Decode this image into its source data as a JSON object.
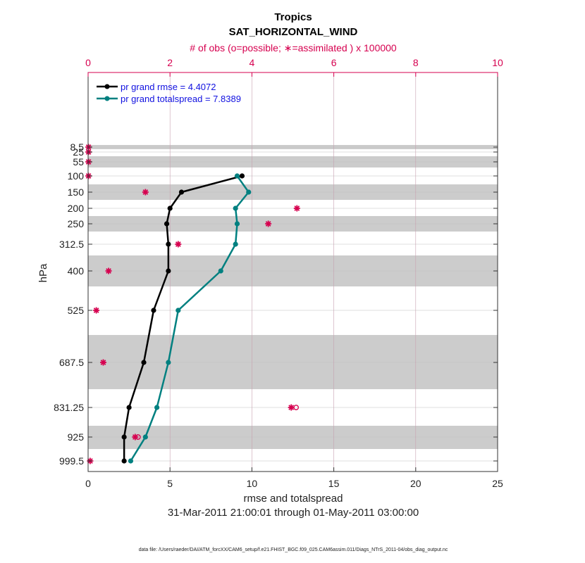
{
  "chart_data": {
    "type": "line",
    "title": "Tropics",
    "subtitle": "SAT_HORIZONTAL_WIND",
    "top_axis_label": "# of obs (o=possible; ∗=assimilated ) x 100000",
    "top_axis_ticks": [
      "0",
      "2",
      "4",
      "6",
      "8",
      "10"
    ],
    "top_axis_range": [
      0,
      10
    ],
    "xlabel": "rmse and totalspread",
    "xlim": [
      0,
      25
    ],
    "x_ticks": [
      "0",
      "5",
      "10",
      "15",
      "20",
      "25"
    ],
    "ylabel": "hPa",
    "y_ticks": [
      "8.5",
      "25",
      "55",
      "100",
      "150",
      "200",
      "250",
      "312.5",
      "400",
      "525",
      "687.5",
      "831.25",
      "925",
      "999.5"
    ],
    "date_range": "31-Mar-2011 21:00:01 through 01-May-2011 03:00:00",
    "footnote": "data file: /Users/raeder/DAI/ATM_forcXX/CAM6_setup/f.e21.FHIST_BGC.f09_025.CAM6assim.011/Diags_NTrS_2011-04/obs_diag_output.nc",
    "series": [
      {
        "name": "rmse",
        "legend": "pr grand rmse = 4.4072",
        "color": "#000000",
        "levels": [
          "100",
          "150",
          "200",
          "250",
          "312.5",
          "400",
          "525",
          "687.5",
          "831.25",
          "925",
          "999.5"
        ],
        "values": [
          9.4,
          5.7,
          5.0,
          4.8,
          4.9,
          4.9,
          4.0,
          3.4,
          2.5,
          2.2,
          2.2
        ]
      },
      {
        "name": "totalspread",
        "legend": "pr grand totalspread = 7.8389",
        "color": "#008080",
        "levels": [
          "100",
          "150",
          "200",
          "250",
          "312.5",
          "400",
          "525",
          "687.5",
          "831.25",
          "925",
          "999.5"
        ],
        "values": [
          9.1,
          9.8,
          9.0,
          9.1,
          9.0,
          8.1,
          5.5,
          4.9,
          4.2,
          3.5,
          2.6
        ]
      }
    ],
    "obs_assimilated": {
      "levels": [
        "8.5",
        "25",
        "55",
        "100",
        "150",
        "200",
        "250",
        "312.5",
        "400",
        "525",
        "687.5",
        "831.25",
        "925",
        "999.5"
      ],
      "values": [
        0.01,
        0.01,
        0.01,
        0.01,
        1.4,
        5.1,
        4.4,
        2.2,
        0.5,
        0.2,
        0.37,
        4.96,
        1.15,
        0.05
      ]
    },
    "obs_possible": {
      "levels": [
        "831.25",
        "925"
      ],
      "values": [
        5.08,
        1.22
      ]
    }
  }
}
